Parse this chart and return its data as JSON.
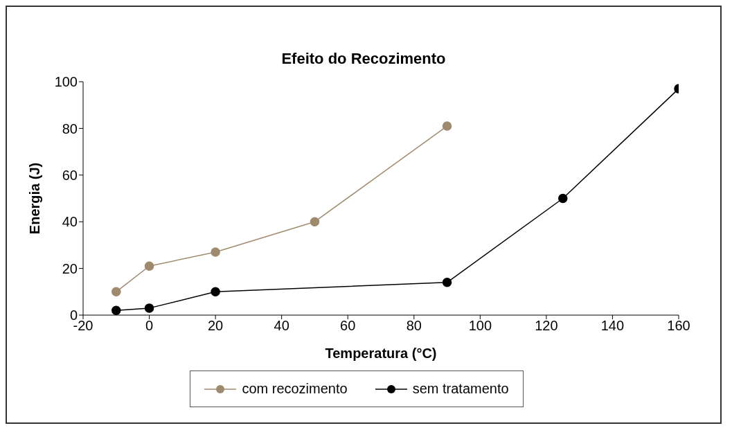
{
  "chart_data": {
    "type": "line",
    "title": "Efeito do Recozimento",
    "xlabel": "Temperatura (°C)",
    "ylabel": "Energia (J)",
    "xlim": [
      -20,
      160
    ],
    "xticks": [
      -20,
      0,
      20,
      40,
      60,
      80,
      100,
      120,
      140,
      160
    ],
    "ylim": [
      0,
      100
    ],
    "yticks": [
      0,
      20,
      40,
      60,
      80,
      100
    ],
    "series": [
      {
        "name": "sem tratamento",
        "color": "#000000",
        "x": [
          -10,
          0,
          20,
          90,
          125,
          160
        ],
        "values": [
          2,
          3,
          10,
          14,
          50,
          97
        ]
      },
      {
        "name": "com recozimento",
        "color": "#a08a6e",
        "x": [
          -10,
          0,
          20,
          50,
          90
        ],
        "values": [
          10,
          21,
          27,
          40,
          81
        ]
      }
    ],
    "marker": "circle",
    "line_style": "solid",
    "grid": false,
    "legend": "bottom"
  }
}
